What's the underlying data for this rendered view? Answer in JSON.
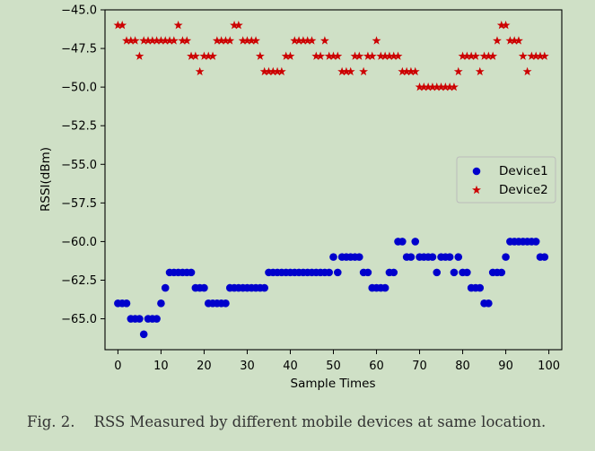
{
  "chart_data": {
    "type": "scatter",
    "xlabel": "Sample Times",
    "ylabel": "RSSI(dBm)",
    "xlim": [
      -3,
      103
    ],
    "ylim": [
      -67.0,
      -45.0
    ],
    "xticks": [
      0,
      10,
      20,
      30,
      40,
      50,
      60,
      70,
      80,
      90,
      100
    ],
    "yticks": [
      -65.0,
      -62.5,
      -60.0,
      -57.5,
      -55.0,
      -52.5,
      -50.0,
      -47.5,
      -45.0
    ],
    "grid": false,
    "legend_position": "right",
    "x": [
      0,
      1,
      2,
      3,
      4,
      5,
      6,
      7,
      8,
      9,
      10,
      11,
      12,
      13,
      14,
      15,
      16,
      17,
      18,
      19,
      20,
      21,
      22,
      23,
      24,
      25,
      26,
      27,
      28,
      29,
      30,
      31,
      32,
      33,
      34,
      35,
      36,
      37,
      38,
      39,
      40,
      41,
      42,
      43,
      44,
      45,
      46,
      47,
      48,
      49,
      50,
      51,
      52,
      53,
      54,
      55,
      56,
      57,
      58,
      59,
      60,
      61,
      62,
      63,
      64,
      65,
      66,
      67,
      68,
      69,
      70,
      71,
      72,
      73,
      74,
      75,
      76,
      77,
      78,
      79,
      80,
      81,
      82,
      83,
      84,
      85,
      86,
      87,
      88,
      89,
      90,
      91,
      92,
      93,
      94,
      95,
      96,
      97,
      98,
      99
    ],
    "series": [
      {
        "name": "Device1",
        "marker": "circle",
        "color": "#0000cc",
        "values": [
          -64,
          -64,
          -64,
          -65,
          -65,
          -65,
          -66,
          -65,
          -65,
          -65,
          -64,
          -63,
          -62,
          -62,
          -62,
          -62,
          -62,
          -62,
          -63,
          -63,
          -63,
          -64,
          -64,
          -64,
          -64,
          -64,
          -63,
          -63,
          -63,
          -63,
          -63,
          -63,
          -63,
          -63,
          -63,
          -62,
          -62,
          -62,
          -62,
          -62,
          -62,
          -62,
          -62,
          -62,
          -62,
          -62,
          -62,
          -62,
          -62,
          -62,
          -61,
          -62,
          -61,
          -61,
          -61,
          -61,
          -61,
          -62,
          -62,
          -63,
          -63,
          -63,
          -63,
          -62,
          -62,
          -60,
          -60,
          -61,
          -61,
          -60,
          -61,
          -61,
          -61,
          -61,
          -62,
          -61,
          -61,
          -61,
          -62,
          -61,
          -62,
          -62,
          -63,
          -63,
          -63,
          -64,
          -64,
          -62,
          -62,
          -62,
          -61,
          -60,
          -60,
          -60,
          -60,
          -60,
          -60,
          -60,
          -61,
          -61
        ]
      },
      {
        "name": "Device2",
        "marker": "star",
        "color": "#cc0000",
        "values": [
          -46,
          -46,
          -47,
          -47,
          -47,
          -48,
          -47,
          -47,
          -47,
          -47,
          -47,
          -47,
          -47,
          -47,
          -46,
          -47,
          -47,
          -48,
          -48,
          -49,
          -48,
          -48,
          -48,
          -47,
          -47,
          -47,
          -47,
          -46,
          -46,
          -47,
          -47,
          -47,
          -47,
          -48,
          -49,
          -49,
          -49,
          -49,
          -49,
          -48,
          -48,
          -47,
          -47,
          -47,
          -47,
          -47,
          -48,
          -48,
          -47,
          -48,
          -48,
          -48,
          -49,
          -49,
          -49,
          -48,
          -48,
          -49,
          -48,
          -48,
          -47,
          -48,
          -48,
          -48,
          -48,
          -48,
          -49,
          -49,
          -49,
          -49,
          -50,
          -50,
          -50,
          -50,
          -50,
          -50,
          -50,
          -50,
          -50,
          -49,
          -48,
          -48,
          -48,
          -48,
          -49,
          -48,
          -48,
          -48,
          -47,
          -46,
          -46,
          -47,
          -47,
          -47,
          -48,
          -49,
          -48,
          -48,
          -48,
          -48
        ]
      }
    ]
  },
  "caption": {
    "label": "Fig. 2.",
    "text": "RSS Measured by different mobile devices at same location."
  }
}
